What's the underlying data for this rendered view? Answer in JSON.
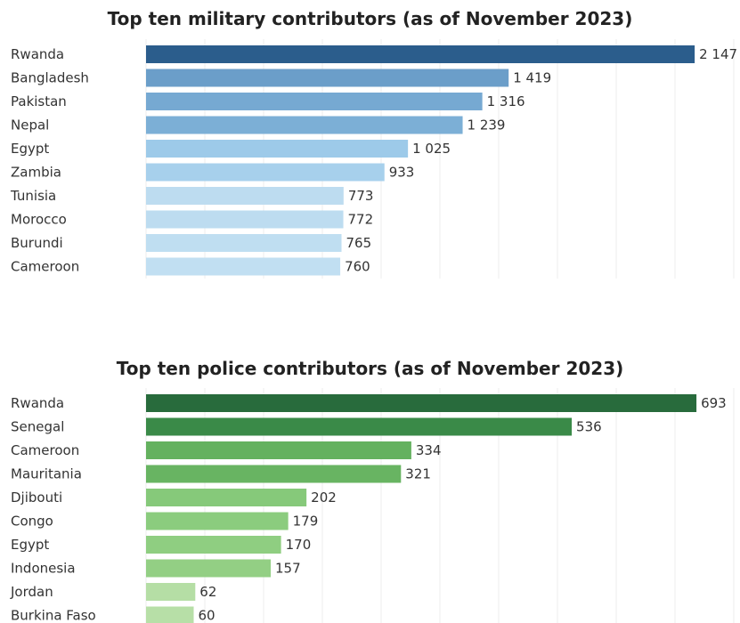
{
  "chart_data": [
    {
      "type": "bar",
      "orientation": "horizontal",
      "title": "Top ten military contributors (as of November 2023)",
      "categories": [
        "Rwanda",
        "Bangladesh",
        "Pakistan",
        "Nepal",
        "Egypt",
        "Zambia",
        "Tunisia",
        "Morocco",
        "Burundi",
        "Cameroon"
      ],
      "values": [
        2147,
        1419,
        1316,
        1239,
        1025,
        933,
        773,
        772,
        765,
        760
      ],
      "value_labels": [
        "2 147",
        "1 419",
        "1 316",
        "1 239",
        "1 025",
        "933",
        "773",
        "772",
        "765",
        "760"
      ],
      "colors": [
        "#2b5d8c",
        "#6b9ec9",
        "#76a9d2",
        "#7cafd6",
        "#9dcae9",
        "#a7d0ec",
        "#bddcf0",
        "#bddcf0",
        "#bfdef1",
        "#c1dff2"
      ],
      "xlim": [
        0,
        2300
      ],
      "grid": true
    },
    {
      "type": "bar",
      "orientation": "horizontal",
      "title": "Top ten police contributors (as of November 2023)",
      "categories": [
        "Rwanda",
        "Senegal",
        "Cameroon",
        "Mauritania",
        "Djibouti",
        "Congo",
        "Egypt",
        "Indonesia",
        "Jordan",
        "Burkina Faso"
      ],
      "values": [
        693,
        536,
        334,
        321,
        202,
        179,
        170,
        157,
        62,
        60
      ],
      "value_labels": [
        "693",
        "536",
        "334",
        "321",
        "202",
        "179",
        "170",
        "157",
        "62",
        "60"
      ],
      "colors": [
        "#286b3c",
        "#3a8a48",
        "#64b15f",
        "#68b462",
        "#86c97a",
        "#8bcc7e",
        "#8fce81",
        "#93cf84",
        "#b5dea5",
        "#b7dfa7"
      ],
      "xlim": [
        0,
        740
      ],
      "grid": true
    }
  ]
}
